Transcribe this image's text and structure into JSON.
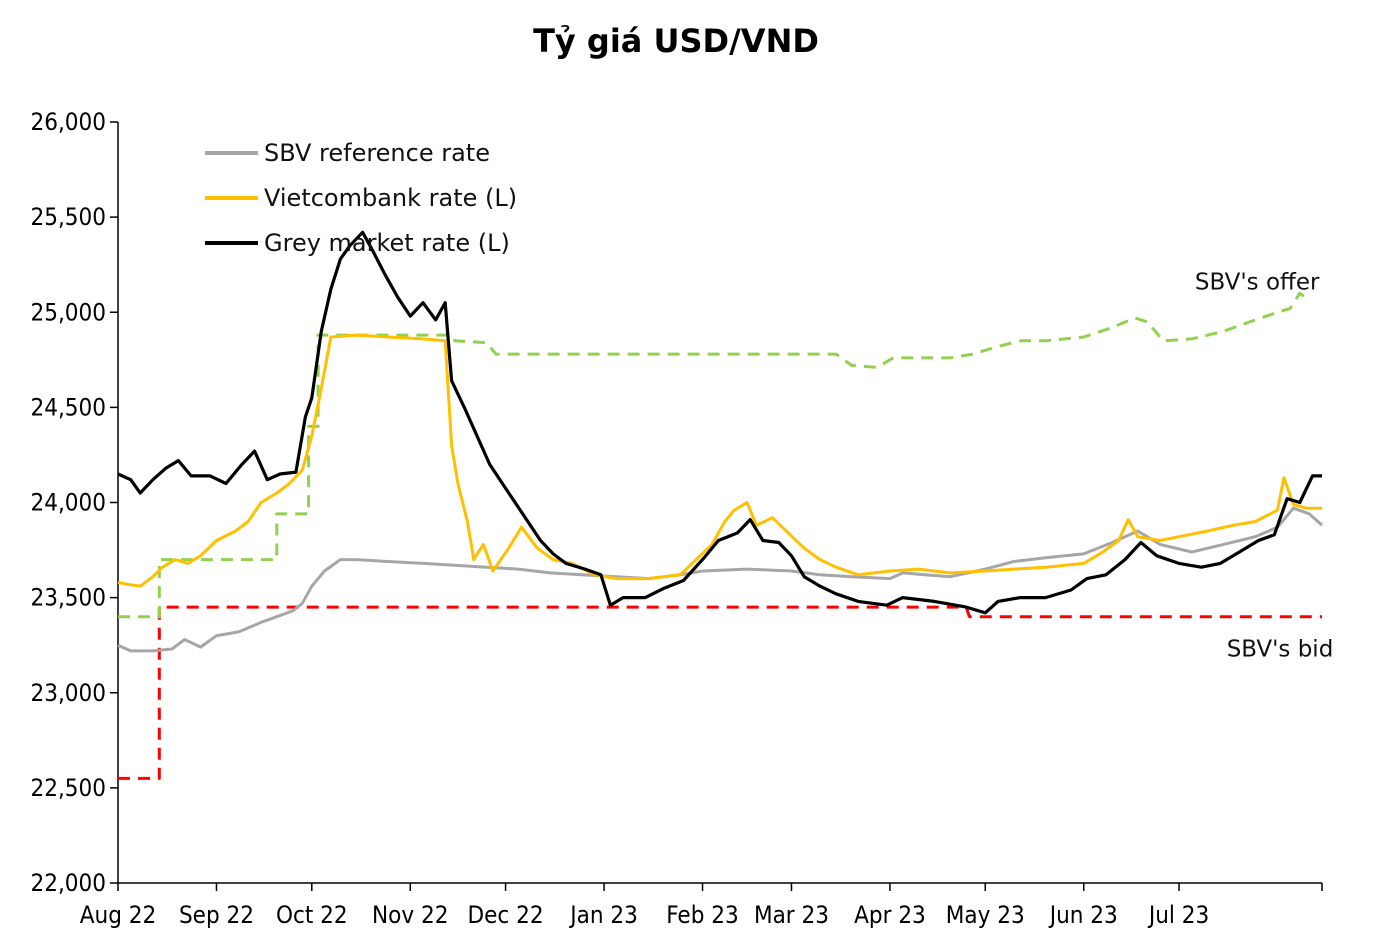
{
  "chart_data": {
    "type": "line",
    "title": "Tỷ giá USD/VND",
    "xlabel": "",
    "ylabel": "",
    "ylim": [
      22000,
      26000
    ],
    "xlim": [
      "2022-08-01",
      "2023-08-15"
    ],
    "yticks": [
      22000,
      22500,
      23000,
      23500,
      24000,
      24500,
      25000,
      25500,
      26000
    ],
    "ytick_labels": [
      "22,000",
      "22,500",
      "23,000",
      "23,500",
      "24,000",
      "24,500",
      "25,000",
      "25,500",
      "26,000"
    ],
    "xticks": [
      "2022-08-01",
      "2022-09-01",
      "2022-10-01",
      "2022-11-01",
      "2022-12-01",
      "2023-01-01",
      "2023-02-01",
      "2023-03-01",
      "2023-04-01",
      "2023-05-01",
      "2023-06-01",
      "2023-07-01"
    ],
    "xtick_labels": [
      "Aug 22",
      "Sep 22",
      "Oct 22",
      "Nov 22",
      "Dec 22",
      "Jan 23",
      "Feb 23",
      "Mar 23",
      "Apr 23",
      "May 23",
      "Jun 23",
      "Jul 23"
    ],
    "grid": false,
    "legend_position": "top-left",
    "series": [
      {
        "name": "SBV reference rate",
        "color": "#a6a6a6",
        "style": "solid",
        "in_legend": true,
        "points": [
          [
            "2022-08-01",
            23250
          ],
          [
            "2022-08-05",
            23220
          ],
          [
            "2022-08-12",
            23220
          ],
          [
            "2022-08-18",
            23230
          ],
          [
            "2022-08-22",
            23280
          ],
          [
            "2022-08-27",
            23240
          ],
          [
            "2022-09-01",
            23300
          ],
          [
            "2022-09-08",
            23320
          ],
          [
            "2022-09-15",
            23370
          ],
          [
            "2022-09-20",
            23400
          ],
          [
            "2022-09-25",
            23430
          ],
          [
            "2022-09-28",
            23470
          ],
          [
            "2022-10-01",
            23560
          ],
          [
            "2022-10-05",
            23640
          ],
          [
            "2022-10-10",
            23700
          ],
          [
            "2022-10-15",
            23700
          ],
          [
            "2022-10-25",
            23690
          ],
          [
            "2022-11-05",
            23680
          ],
          [
            "2022-11-15",
            23670
          ],
          [
            "2022-11-25",
            23660
          ],
          [
            "2022-12-05",
            23650
          ],
          [
            "2022-12-15",
            23630
          ],
          [
            "2022-12-25",
            23620
          ],
          [
            "2023-01-05",
            23610
          ],
          [
            "2023-01-15",
            23600
          ],
          [
            "2023-01-25",
            23620
          ],
          [
            "2023-02-01",
            23640
          ],
          [
            "2023-02-15",
            23650
          ],
          [
            "2023-03-01",
            23640
          ],
          [
            "2023-03-10",
            23620
          ],
          [
            "2023-03-20",
            23610
          ],
          [
            "2023-04-01",
            23600
          ],
          [
            "2023-04-05",
            23630
          ],
          [
            "2023-04-12",
            23620
          ],
          [
            "2023-04-20",
            23610
          ],
          [
            "2023-05-01",
            23650
          ],
          [
            "2023-05-10",
            23690
          ],
          [
            "2023-05-20",
            23710
          ],
          [
            "2023-06-01",
            23730
          ],
          [
            "2023-06-10",
            23790
          ],
          [
            "2023-06-18",
            23850
          ],
          [
            "2023-06-25",
            23780
          ],
          [
            "2023-07-05",
            23740
          ],
          [
            "2023-07-15",
            23780
          ],
          [
            "2023-07-25",
            23820
          ],
          [
            "2023-08-01",
            23870
          ],
          [
            "2023-08-06",
            23970
          ],
          [
            "2023-08-11",
            23940
          ],
          [
            "2023-08-15",
            23880
          ]
        ]
      },
      {
        "name": "Vietcombank rate (L)",
        "color": "#ffc000",
        "style": "solid",
        "in_legend": true,
        "points": [
          [
            "2022-08-01",
            23580
          ],
          [
            "2022-08-04",
            23570
          ],
          [
            "2022-08-08",
            23560
          ],
          [
            "2022-08-12",
            23610
          ],
          [
            "2022-08-15",
            23660
          ],
          [
            "2022-08-19",
            23700
          ],
          [
            "2022-08-23",
            23680
          ],
          [
            "2022-08-27",
            23720
          ],
          [
            "2022-09-01",
            23800
          ],
          [
            "2022-09-07",
            23850
          ],
          [
            "2022-09-11",
            23900
          ],
          [
            "2022-09-15",
            24000
          ],
          [
            "2022-09-20",
            24050
          ],
          [
            "2022-09-24",
            24100
          ],
          [
            "2022-09-28",
            24170
          ],
          [
            "2022-10-01",
            24350
          ],
          [
            "2022-10-04",
            24600
          ],
          [
            "2022-10-07",
            24870
          ],
          [
            "2022-10-15",
            24880
          ],
          [
            "2022-10-25",
            24870
          ],
          [
            "2022-11-05",
            24860
          ],
          [
            "2022-11-12",
            24850
          ],
          [
            "2022-11-14",
            24300
          ],
          [
            "2022-11-16",
            24100
          ],
          [
            "2022-11-19",
            23900
          ],
          [
            "2022-11-21",
            23700
          ],
          [
            "2022-11-24",
            23780
          ],
          [
            "2022-11-27",
            23640
          ],
          [
            "2022-12-02",
            23760
          ],
          [
            "2022-12-06",
            23870
          ],
          [
            "2022-12-11",
            23760
          ],
          [
            "2022-12-16",
            23700
          ],
          [
            "2022-12-22",
            23680
          ],
          [
            "2022-12-29",
            23620
          ],
          [
            "2023-01-05",
            23600
          ],
          [
            "2023-01-15",
            23600
          ],
          [
            "2023-01-25",
            23620
          ],
          [
            "2023-01-30",
            23700
          ],
          [
            "2023-02-04",
            23780
          ],
          [
            "2023-02-08",
            23900
          ],
          [
            "2023-02-11",
            23960
          ],
          [
            "2023-02-15",
            24000
          ],
          [
            "2023-02-18",
            23880
          ],
          [
            "2023-02-23",
            23920
          ],
          [
            "2023-02-28",
            23840
          ],
          [
            "2023-03-05",
            23760
          ],
          [
            "2023-03-10",
            23700
          ],
          [
            "2023-03-15",
            23660
          ],
          [
            "2023-03-22",
            23620
          ],
          [
            "2023-04-01",
            23640
          ],
          [
            "2023-04-10",
            23650
          ],
          [
            "2023-04-20",
            23630
          ],
          [
            "2023-05-01",
            23640
          ],
          [
            "2023-05-10",
            23650
          ],
          [
            "2023-05-20",
            23660
          ],
          [
            "2023-06-01",
            23680
          ],
          [
            "2023-06-07",
            23740
          ],
          [
            "2023-06-12",
            23800
          ],
          [
            "2023-06-15",
            23910
          ],
          [
            "2023-06-18",
            23820
          ],
          [
            "2023-06-25",
            23800
          ],
          [
            "2023-07-01",
            23820
          ],
          [
            "2023-07-10",
            23850
          ],
          [
            "2023-07-18",
            23880
          ],
          [
            "2023-07-25",
            23900
          ],
          [
            "2023-08-01",
            23960
          ],
          [
            "2023-08-03",
            24130
          ],
          [
            "2023-08-06",
            23990
          ],
          [
            "2023-08-10",
            23970
          ],
          [
            "2023-08-15",
            23970
          ]
        ]
      },
      {
        "name": "Grey market rate (L)",
        "color": "#000000",
        "style": "solid",
        "in_legend": true,
        "points": [
          [
            "2022-08-01",
            24150
          ],
          [
            "2022-08-05",
            24120
          ],
          [
            "2022-08-08",
            24050
          ],
          [
            "2022-08-12",
            24120
          ],
          [
            "2022-08-16",
            24180
          ],
          [
            "2022-08-20",
            24220
          ],
          [
            "2022-08-24",
            24140
          ],
          [
            "2022-08-30",
            24140
          ],
          [
            "2022-09-04",
            24100
          ],
          [
            "2022-09-09",
            24200
          ],
          [
            "2022-09-13",
            24270
          ],
          [
            "2022-09-17",
            24120
          ],
          [
            "2022-09-21",
            24150
          ],
          [
            "2022-09-26",
            24160
          ],
          [
            "2022-09-29",
            24450
          ],
          [
            "2022-10-01",
            24550
          ],
          [
            "2022-10-04",
            24900
          ],
          [
            "2022-10-07",
            25120
          ],
          [
            "2022-10-10",
            25280
          ],
          [
            "2022-10-13",
            25350
          ],
          [
            "2022-10-17",
            25420
          ],
          [
            "2022-10-20",
            25330
          ],
          [
            "2022-10-24",
            25200
          ],
          [
            "2022-10-28",
            25080
          ],
          [
            "2022-11-01",
            24980
          ],
          [
            "2022-11-05",
            25050
          ],
          [
            "2022-11-09",
            24960
          ],
          [
            "2022-11-12",
            25050
          ],
          [
            "2022-11-14",
            24640
          ],
          [
            "2022-11-18",
            24500
          ],
          [
            "2022-11-22",
            24350
          ],
          [
            "2022-11-26",
            24200
          ],
          [
            "2022-11-30",
            24100
          ],
          [
            "2022-12-04",
            24000
          ],
          [
            "2022-12-08",
            23900
          ],
          [
            "2022-12-12",
            23800
          ],
          [
            "2022-12-16",
            23730
          ],
          [
            "2022-12-20",
            23680
          ],
          [
            "2022-12-26",
            23650
          ],
          [
            "2022-12-31",
            23620
          ],
          [
            "2023-01-03",
            23460
          ],
          [
            "2023-01-07",
            23500
          ],
          [
            "2023-01-14",
            23500
          ],
          [
            "2023-01-20",
            23550
          ],
          [
            "2023-01-26",
            23590
          ],
          [
            "2023-02-01",
            23700
          ],
          [
            "2023-02-06",
            23800
          ],
          [
            "2023-02-12",
            23840
          ],
          [
            "2023-02-16",
            23910
          ],
          [
            "2023-02-20",
            23800
          ],
          [
            "2023-02-25",
            23790
          ],
          [
            "2023-03-01",
            23720
          ],
          [
            "2023-03-05",
            23610
          ],
          [
            "2023-03-10",
            23560
          ],
          [
            "2023-03-15",
            23520
          ],
          [
            "2023-03-22",
            23480
          ],
          [
            "2023-03-31",
            23460
          ],
          [
            "2023-04-05",
            23500
          ],
          [
            "2023-04-15",
            23480
          ],
          [
            "2023-04-25",
            23450
          ],
          [
            "2023-05-01",
            23420
          ],
          [
            "2023-05-05",
            23480
          ],
          [
            "2023-05-12",
            23500
          ],
          [
            "2023-05-20",
            23500
          ],
          [
            "2023-05-28",
            23540
          ],
          [
            "2023-06-02",
            23600
          ],
          [
            "2023-06-08",
            23620
          ],
          [
            "2023-06-14",
            23700
          ],
          [
            "2023-06-19",
            23790
          ],
          [
            "2023-06-24",
            23720
          ],
          [
            "2023-07-01",
            23680
          ],
          [
            "2023-07-08",
            23660
          ],
          [
            "2023-07-14",
            23680
          ],
          [
            "2023-07-20",
            23740
          ],
          [
            "2023-07-26",
            23800
          ],
          [
            "2023-07-31",
            23830
          ],
          [
            "2023-08-04",
            24020
          ],
          [
            "2023-08-08",
            24000
          ],
          [
            "2023-08-12",
            24140
          ],
          [
            "2023-08-15",
            24140
          ]
        ]
      },
      {
        "name": "SBV's offer",
        "color": "#92d050",
        "style": "dashed",
        "in_legend": false,
        "points": [
          [
            "2022-08-01",
            23400
          ],
          [
            "2022-08-14",
            23400
          ],
          [
            "2022-08-14",
            23700
          ],
          [
            "2022-09-20",
            23700
          ],
          [
            "2022-09-20",
            23940
          ],
          [
            "2022-09-30",
            23940
          ],
          [
            "2022-09-30",
            24400
          ],
          [
            "2022-10-03",
            24400
          ],
          [
            "2022-10-03",
            24880
          ],
          [
            "2022-11-14",
            24880
          ],
          [
            "2022-11-15",
            24850
          ],
          [
            "2022-11-25",
            24840
          ],
          [
            "2022-11-28",
            24780
          ],
          [
            "2023-03-15",
            24780
          ],
          [
            "2023-03-20",
            24720
          ],
          [
            "2023-03-28",
            24710
          ],
          [
            "2023-04-02",
            24760
          ],
          [
            "2023-04-20",
            24760
          ],
          [
            "2023-04-27",
            24780
          ],
          [
            "2023-05-05",
            24820
          ],
          [
            "2023-05-12",
            24850
          ],
          [
            "2023-05-20",
            24850
          ],
          [
            "2023-06-01",
            24870
          ],
          [
            "2023-06-10",
            24920
          ],
          [
            "2023-06-17",
            24970
          ],
          [
            "2023-06-21",
            24950
          ],
          [
            "2023-06-26",
            24850
          ],
          [
            "2023-07-05",
            24860
          ],
          [
            "2023-07-15",
            24900
          ],
          [
            "2023-07-25",
            24960
          ],
          [
            "2023-08-01",
            25000
          ],
          [
            "2023-08-05",
            25020
          ],
          [
            "2023-08-08",
            25100
          ],
          [
            "2023-08-11",
            25060
          ]
        ]
      },
      {
        "name": "SBV's bid",
        "color": "#ff0000",
        "style": "dashed",
        "in_legend": false,
        "points": [
          [
            "2022-08-01",
            22550
          ],
          [
            "2022-08-14",
            22550
          ],
          [
            "2022-08-14",
            23450
          ],
          [
            "2023-04-25",
            23450
          ],
          [
            "2023-04-26",
            23400
          ],
          [
            "2023-08-15",
            23400
          ]
        ]
      }
    ],
    "annotations": [
      {
        "text": "SBV's offer",
        "x": "2023-07-06",
        "y": 25120
      },
      {
        "text": "SBV's bid",
        "x": "2023-07-16",
        "y": 23190
      }
    ]
  }
}
